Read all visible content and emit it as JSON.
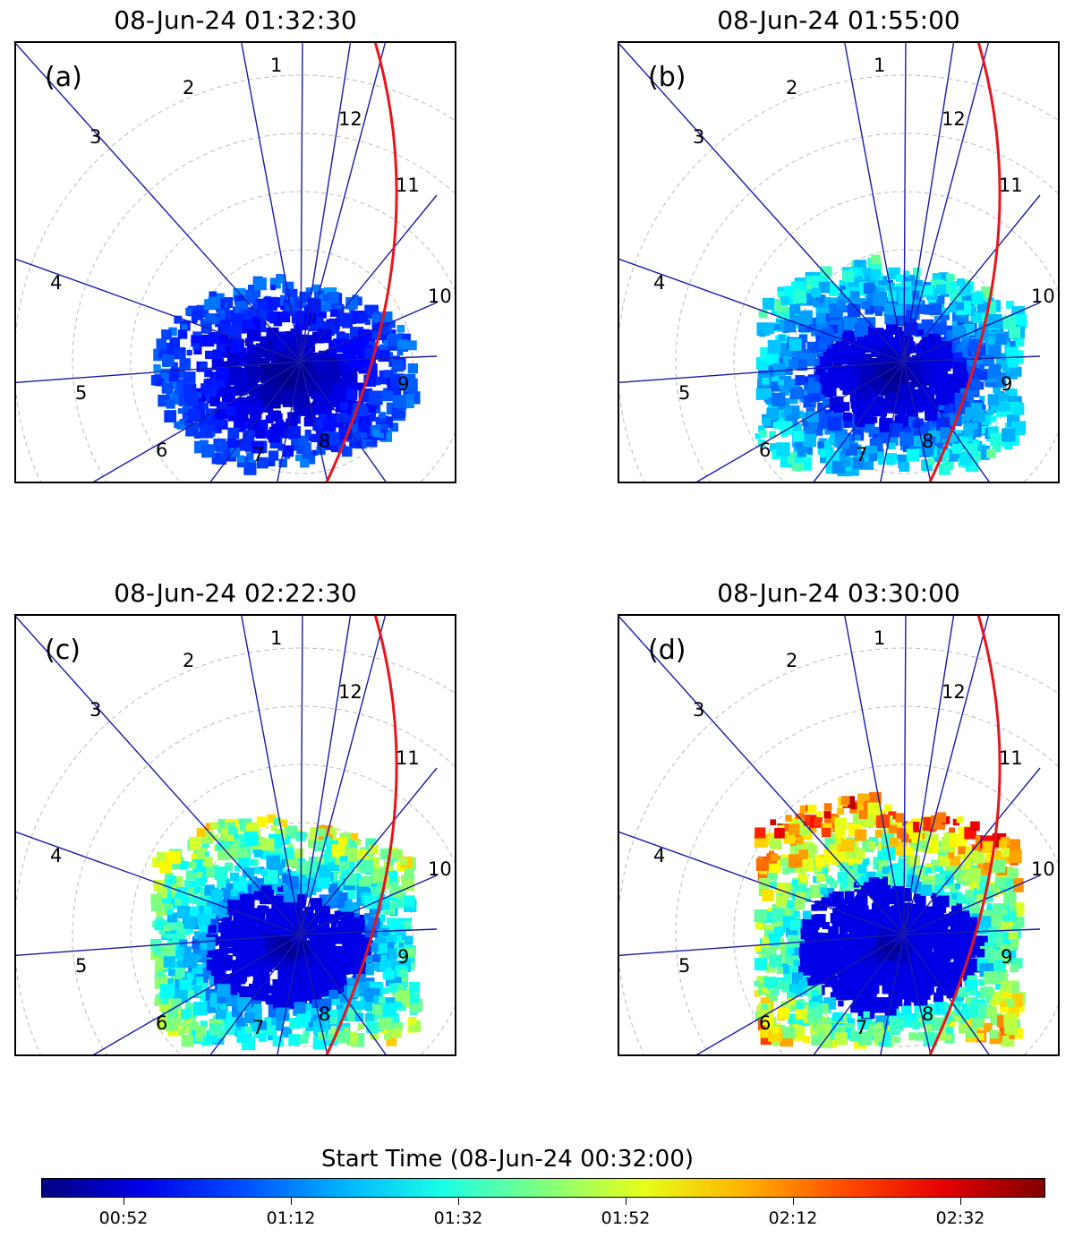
{
  "panels": [
    {
      "label": "(a)",
      "title": "08-Jun-24 01:32:30",
      "stage": 0
    },
    {
      "label": "(b)",
      "title": "08-Jun-24 01:55:00",
      "stage": 1
    },
    {
      "label": "(c)",
      "title": "08-Jun-24 02:22:30",
      "stage": 2
    },
    {
      "label": "(d)",
      "title": "08-Jun-24 03:30:00",
      "stage": 3
    }
  ],
  "mlt_labels": [
    "1",
    "2",
    "3",
    "4",
    "5",
    "6",
    "7",
    "8",
    "9",
    "10",
    "11",
    "12"
  ],
  "colorbar": {
    "title": "Start Time (08-Jun-24 00:32:00)",
    "ticks": [
      "00:52",
      "01:12",
      "01:32",
      "01:52",
      "02:12",
      "02:32"
    ],
    "colormap": "jet"
  },
  "colors": {
    "meridians": "#1a1aa8",
    "boundary": "#e8141c",
    "grid": "#bbbbbb"
  },
  "chart_data": {
    "type": "heatmap",
    "description_series": "Spatial maps of event start time in MLT polar grid at four snapshot times",
    "snapshots": [
      "08-Jun-24 01:32:30",
      "08-Jun-24 01:55:00",
      "08-Jun-24 02:22:30",
      "08-Jun-24 03:30:00"
    ],
    "colorbar_reference": "08-Jun-24 00:32:00",
    "colorbar_ticks": [
      "00:52",
      "01:12",
      "01:32",
      "01:52",
      "02:12",
      "02:32"
    ]
  }
}
